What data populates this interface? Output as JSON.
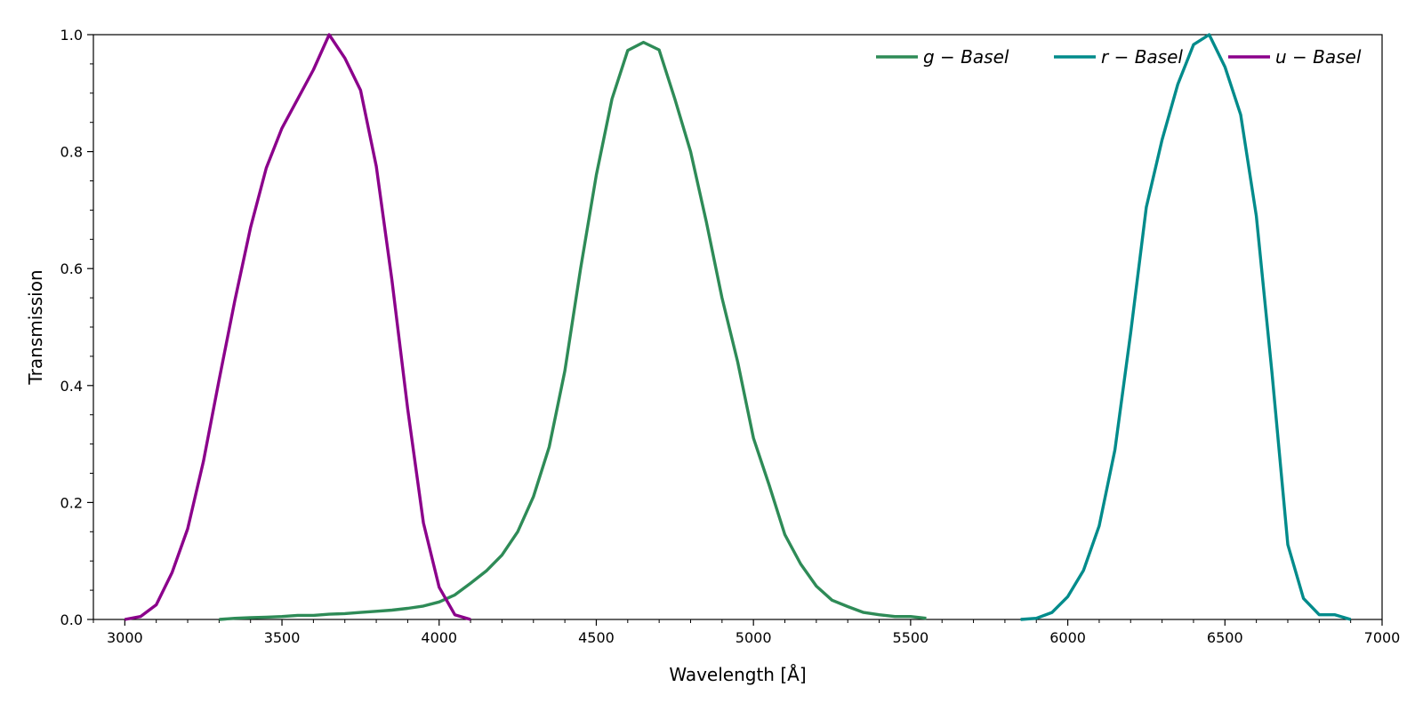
{
  "chart_data": {
    "type": "line",
    "xlabel": "Wavelength [Å]",
    "ylabel": "Transmission",
    "xlim": [
      2900,
      7000
    ],
    "ylim": [
      0.0,
      1.0
    ],
    "x_ticks": [
      3000,
      3500,
      4000,
      4500,
      5000,
      5500,
      6000,
      6500,
      7000
    ],
    "x_tick_labels": [
      "3000",
      "3500",
      "4000",
      "4500",
      "5000",
      "5500",
      "6000",
      "6500",
      "7000"
    ],
    "y_ticks": [
      0.0,
      0.2,
      0.4,
      0.6,
      0.8,
      1.0
    ],
    "y_tick_labels": [
      "0.0",
      "0.2",
      "0.4",
      "0.6",
      "0.8",
      "1.0"
    ],
    "grid": false,
    "legend_position": "top-right",
    "series": [
      {
        "name": "g − Basel",
        "color": "#2e8b57",
        "x": [
          3300,
          3350,
          3400,
          3450,
          3500,
          3550,
          3600,
          3650,
          3700,
          3750,
          3800,
          3850,
          3900,
          3950,
          4000,
          4050,
          4100,
          4150,
          4200,
          4250,
          4300,
          4350,
          4400,
          4450,
          4500,
          4550,
          4600,
          4650,
          4700,
          4750,
          4800,
          4850,
          4900,
          4950,
          5000,
          5050,
          5100,
          5150,
          5200,
          5250,
          5300,
          5350,
          5400,
          5450,
          5500,
          5550
        ],
        "y": [
          0.0,
          0.002,
          0.003,
          0.004,
          0.005,
          0.007,
          0.007,
          0.009,
          0.01,
          0.012,
          0.014,
          0.016,
          0.019,
          0.023,
          0.03,
          0.042,
          0.062,
          0.083,
          0.11,
          0.15,
          0.21,
          0.295,
          0.425,
          0.6,
          0.76,
          0.89,
          0.973,
          0.987,
          0.974,
          0.89,
          0.8,
          0.68,
          0.55,
          0.44,
          0.31,
          0.23,
          0.145,
          0.095,
          0.057,
          0.033,
          0.022,
          0.012,
          0.008,
          0.005,
          0.005,
          0.002
        ]
      },
      {
        "name": "r − Basel",
        "color": "#008b8b",
        "x": [
          5850,
          5900,
          5950,
          6000,
          6050,
          6100,
          6150,
          6200,
          6250,
          6300,
          6350,
          6400,
          6450,
          6500,
          6550,
          6600,
          6650,
          6700,
          6750,
          6800,
          6850,
          6900
        ],
        "y": [
          0.0,
          0.002,
          0.012,
          0.039,
          0.084,
          0.16,
          0.29,
          0.49,
          0.705,
          0.82,
          0.915,
          0.983,
          1.0,
          0.945,
          0.863,
          0.69,
          0.42,
          0.128,
          0.036,
          0.008,
          0.008,
          0.0
        ]
      },
      {
        "name": "u − Basel",
        "color": "#8b008b",
        "x": [
          3000,
          3050,
          3100,
          3150,
          3200,
          3250,
          3300,
          3350,
          3400,
          3450,
          3500,
          3550,
          3600,
          3650,
          3700,
          3750,
          3800,
          3850,
          3900,
          3950,
          4000,
          4050,
          4100
        ],
        "y": [
          0.0,
          0.005,
          0.025,
          0.08,
          0.155,
          0.27,
          0.41,
          0.545,
          0.67,
          0.772,
          0.84,
          0.89,
          0.94,
          1.0,
          0.96,
          0.905,
          0.775,
          0.58,
          0.36,
          0.165,
          0.055,
          0.008,
          0.0
        ]
      }
    ]
  }
}
